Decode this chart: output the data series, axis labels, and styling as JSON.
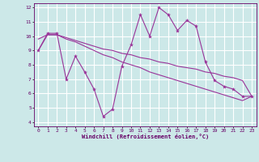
{
  "xlabel": "Windchill (Refroidissement éolien,°C)",
  "ylabel": "",
  "background_color": "#cce8e8",
  "grid_color": "#ffffff",
  "line_color": "#993399",
  "xlim": [
    -0.5,
    23.5
  ],
  "ylim": [
    3.7,
    12.3
  ],
  "yticks": [
    4,
    5,
    6,
    7,
    8,
    9,
    10,
    11,
    12
  ],
  "xticks": [
    0,
    1,
    2,
    3,
    4,
    5,
    6,
    7,
    8,
    9,
    10,
    11,
    12,
    13,
    14,
    15,
    16,
    17,
    18,
    19,
    20,
    21,
    22,
    23
  ],
  "series1_x": [
    0,
    1,
    2,
    3,
    4,
    5,
    6,
    7,
    8,
    9,
    10,
    11,
    12,
    13,
    14,
    15,
    16,
    17,
    18,
    19,
    20,
    21,
    22,
    23
  ],
  "series1_y": [
    9.0,
    10.2,
    10.2,
    7.0,
    8.6,
    7.5,
    6.3,
    4.4,
    4.9,
    7.9,
    9.4,
    11.5,
    10.0,
    12.0,
    11.5,
    10.4,
    11.1,
    10.7,
    8.2,
    6.9,
    6.5,
    6.3,
    5.8,
    5.8
  ],
  "series2_x": [
    0,
    1,
    2,
    3,
    4,
    5,
    6,
    7,
    8,
    9,
    10,
    11,
    12,
    13,
    14,
    15,
    16,
    17,
    18,
    19,
    20,
    21,
    22,
    23
  ],
  "series2_y": [
    9.8,
    10.1,
    10.1,
    9.9,
    9.7,
    9.5,
    9.3,
    9.1,
    9.0,
    8.8,
    8.7,
    8.5,
    8.4,
    8.2,
    8.1,
    7.9,
    7.8,
    7.7,
    7.5,
    7.4,
    7.2,
    7.1,
    6.9,
    5.8
  ],
  "series3_x": [
    0,
    1,
    2,
    3,
    4,
    5,
    6,
    7,
    8,
    9,
    10,
    11,
    12,
    13,
    14,
    15,
    16,
    17,
    18,
    19,
    20,
    21,
    22,
    23
  ],
  "series3_y": [
    9.0,
    10.1,
    10.1,
    9.8,
    9.6,
    9.3,
    9.0,
    8.7,
    8.5,
    8.2,
    8.0,
    7.8,
    7.5,
    7.3,
    7.1,
    6.9,
    6.7,
    6.5,
    6.3,
    6.1,
    5.9,
    5.7,
    5.5,
    5.8
  ]
}
